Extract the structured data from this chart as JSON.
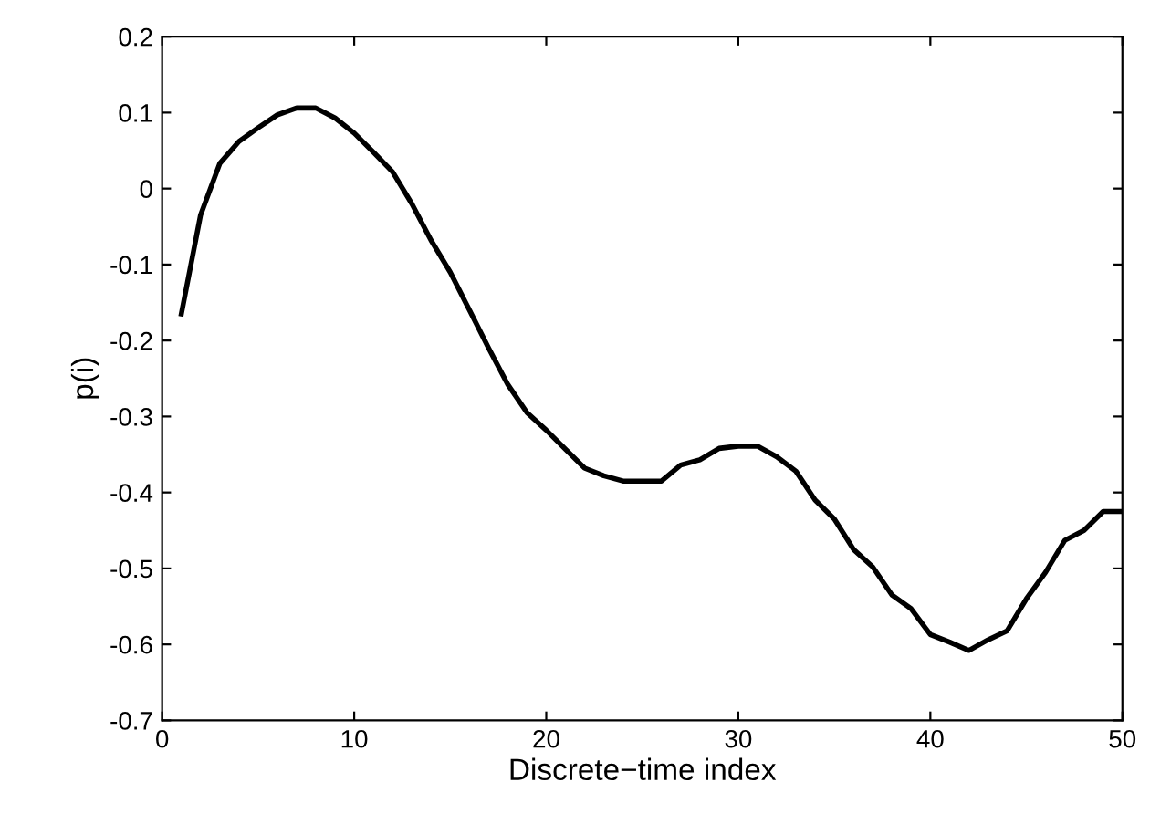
{
  "chart_data": {
    "type": "line",
    "xlabel": "Discrete−time index",
    "ylabel": "p(i)",
    "x": [
      1,
      2,
      3,
      4,
      5,
      6,
      7,
      8,
      9,
      10,
      11,
      12,
      13,
      14,
      15,
      16,
      17,
      18,
      19,
      20,
      21,
      22,
      23,
      24,
      25,
      26,
      27,
      28,
      29,
      30,
      31,
      32,
      33,
      34,
      35,
      36,
      37,
      38,
      39,
      40,
      41,
      42,
      43,
      44,
      45,
      46,
      47,
      48,
      49,
      50
    ],
    "series": [
      {
        "color": "#000000",
        "values": [
          -0.165,
          -0.035,
          0.033,
          0.062,
          0.08,
          0.097,
          0.106,
          0.106,
          0.093,
          0.073,
          0.048,
          0.022,
          -0.02,
          -0.068,
          -0.11,
          -0.16,
          -0.21,
          -0.258,
          -0.295,
          -0.318,
          -0.343,
          -0.368,
          -0.378,
          -0.385,
          -0.385,
          -0.385,
          -0.364,
          -0.357,
          -0.342,
          -0.339,
          -0.339,
          -0.353,
          -0.372,
          -0.41,
          -0.435,
          -0.475,
          -0.498,
          -0.535,
          -0.553,
          -0.587,
          -0.597,
          -0.608,
          -0.594,
          -0.582,
          -0.54,
          -0.505,
          -0.463,
          -0.45,
          -0.425,
          -0.425
        ]
      }
    ],
    "xlim": [
      0,
      50
    ],
    "xticks": [
      0,
      10,
      20,
      30,
      40,
      50
    ],
    "ylim": [
      -0.7,
      0.2
    ],
    "yticks": [
      -0.7,
      -0.6,
      -0.5,
      -0.4,
      -0.3,
      -0.2,
      -0.1,
      0,
      0.1,
      0.2
    ],
    "marker": "none",
    "line_style": "solid"
  }
}
